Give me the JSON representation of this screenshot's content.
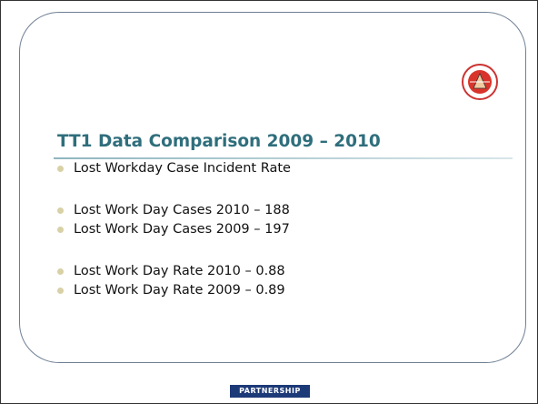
{
  "slide": {
    "title": "TT1 Data Comparison 2009 – 2010",
    "bullet_groups": [
      [
        "Lost Workday Case Incident Rate"
      ],
      [
        "Lost Work Day Cases 2010 – 188",
        "Lost Work Day Cases 2009 – 197"
      ],
      [
        "Lost Work Day Rate 2010 – 0.88",
        "Lost Work Day Rate 2009 – 0.89"
      ]
    ],
    "footer_logo": "PARTNERSHIP"
  }
}
